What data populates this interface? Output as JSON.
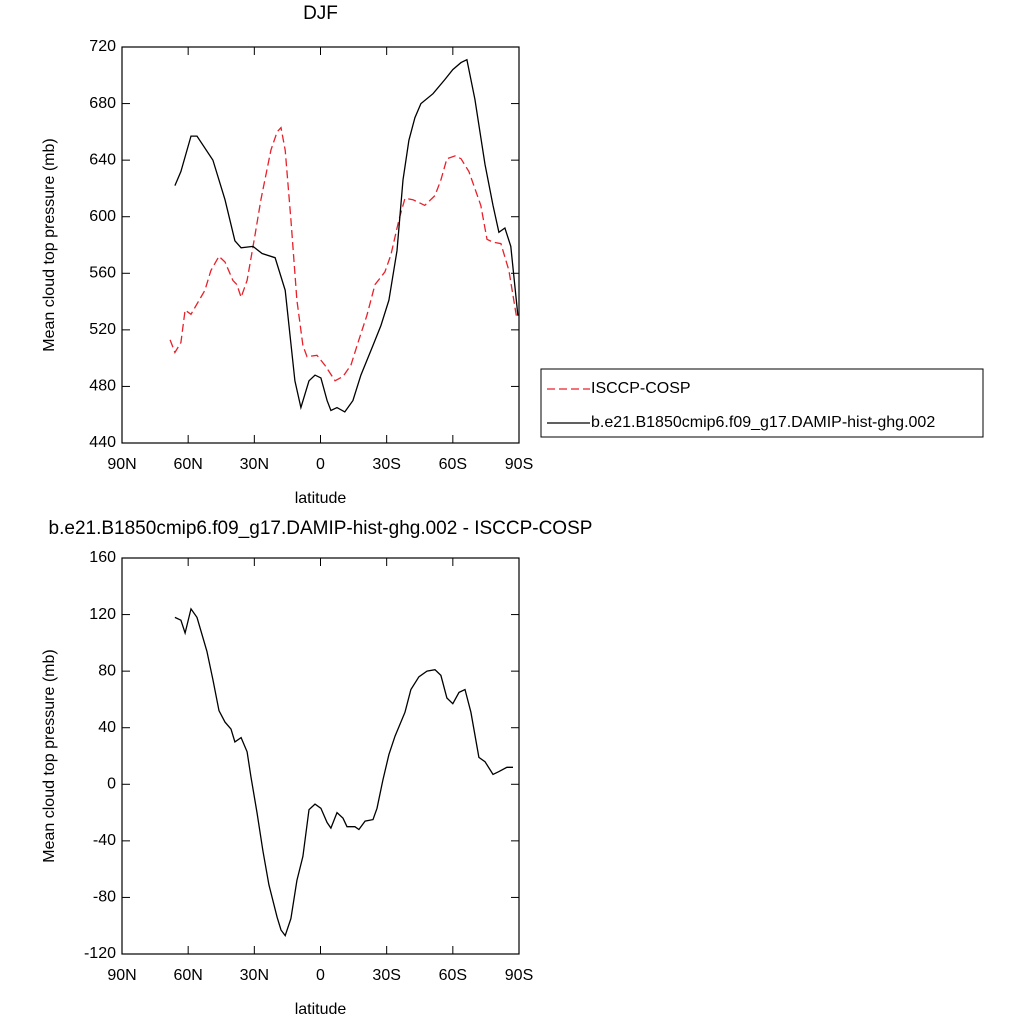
{
  "chart_data": [
    {
      "type": "line",
      "title": "DJF",
      "x_label": "latitude",
      "y_label": "Mean cloud top pressure (mb)",
      "xlim": [
        90,
        -90
      ],
      "xticks": [
        {
          "value": 90,
          "label": "90N"
        },
        {
          "value": 60,
          "label": "60N"
        },
        {
          "value": 30,
          "label": "30N"
        },
        0,
        {
          "value": -30,
          "label": "30S"
        },
        {
          "value": -60,
          "label": "60S"
        },
        {
          "value": -90,
          "label": "90S"
        }
      ],
      "ylim": [
        440,
        720
      ],
      "yticks": [
        440,
        480,
        520,
        560,
        600,
        640,
        680,
        720
      ],
      "legend": "right",
      "series": [
        {
          "name": "ISCCP-COSP",
          "color": "#e8202a",
          "dashed": true,
          "x": [
            68.2,
            66,
            63.3,
            61.4,
            58.7,
            52.4,
            49.7,
            46,
            43.3,
            39.7,
            37.9,
            36,
            33.3,
            29.7,
            27,
            22.5,
            19.7,
            17.9,
            16,
            13.4,
            10.7,
            8,
            6.1,
            1.6,
            -2,
            -6.6,
            -10.2,
            -13.8,
            -17.4,
            -21,
            -24.7,
            -29.2,
            -31.9,
            -35.6,
            -38.3,
            -41.9,
            -47.3,
            -51.9,
            -54.6,
            -57.3,
            -61,
            -63.7,
            -67.3,
            -72.7,
            -75.5,
            -78.2,
            -81.8,
            -85.4,
            -89
          ],
          "values": [
            513,
            504,
            511,
            534,
            531,
            548,
            562,
            572,
            568,
            555,
            552,
            543,
            555,
            587,
            612,
            647,
            660,
            663,
            647,
            598,
            541,
            509,
            501,
            502,
            495,
            484,
            487,
            495,
            513,
            530,
            552,
            561,
            573,
            598,
            613,
            612,
            608,
            615,
            626,
            641,
            643,
            641,
            632,
            608,
            584,
            582,
            581,
            562,
            528
          ]
        },
        {
          "name": "b.e21.B1850cmip6.f09_g17.DAMIP-hist-ghg.002",
          "color": "#000000",
          "dashed": false,
          "x": [
            66,
            63.3,
            58.7,
            56,
            48.8,
            43.3,
            38.8,
            36,
            30.6,
            26.5,
            20.6,
            16,
            11.6,
            8.9,
            5.2,
            2.5,
            -0.2,
            -3,
            -4.7,
            -7.5,
            -11,
            -14.7,
            -18.3,
            -23.8,
            -27.4,
            -31,
            -34.7,
            -37.4,
            -40.1,
            -42.8,
            -45.5,
            -51,
            -56.4,
            -60,
            -63.7,
            -66.4,
            -70,
            -74.6,
            -78.2,
            -80.9,
            -83.6,
            -86.3,
            -89.5
          ],
          "values": [
            622,
            632,
            657,
            657,
            640,
            612,
            583,
            578,
            579,
            574,
            571,
            548,
            484,
            465,
            484,
            488,
            486,
            470,
            463,
            465,
            462,
            470,
            488,
            509,
            523,
            541,
            576,
            626,
            654,
            670,
            680,
            687,
            697,
            704,
            709,
            711,
            683,
            637,
            608,
            589,
            592,
            579,
            530
          ]
        }
      ]
    },
    {
      "type": "line",
      "title": "b.e21.B1850cmip6.f09_g17.DAMIP-hist-ghg.002 - ISCCP-COSP",
      "x_label": "latitude",
      "y_label": "Mean cloud top pressure (mb)",
      "xlim": [
        90,
        -90
      ],
      "xticks": [
        {
          "value": 90,
          "label": "90N"
        },
        {
          "value": 60,
          "label": "60N"
        },
        {
          "value": 30,
          "label": "30N"
        },
        0,
        {
          "value": -30,
          "label": "30S"
        },
        {
          "value": -60,
          "label": "60S"
        },
        {
          "value": -90,
          "label": "90S"
        }
      ],
      "ylim": [
        -120,
        160
      ],
      "yticks": [
        -120,
        -80,
        -40,
        0,
        40,
        80,
        120,
        160
      ],
      "series": [
        {
          "color": "#000000",
          "dashed": false,
          "x": [
            66,
            63.3,
            61.4,
            58.7,
            56,
            51.5,
            48.8,
            46,
            43.3,
            40.6,
            38.8,
            36,
            33.3,
            31.5,
            28.8,
            26.1,
            23.4,
            19.7,
            17.9,
            16,
            13.4,
            10.7,
            8,
            5.2,
            2.5,
            -0.2,
            -3,
            -4.7,
            -7.5,
            -10.2,
            -12,
            -15.6,
            -17.4,
            -20.2,
            -23.8,
            -25.6,
            -28.3,
            -31,
            -33.8,
            -38.3,
            -41,
            -44.6,
            -48.3,
            -51.9,
            -54.6,
            -57.3,
            -60,
            -62.8,
            -65.5,
            -68.2,
            -71.8,
            -74.6,
            -78.2,
            -80.9,
            -84.5,
            -87.3
          ],
          "values": [
            118,
            116,
            107,
            124,
            118,
            94,
            74,
            52,
            44,
            39,
            30,
            33,
            23,
            5,
            -20,
            -47,
            -71,
            -94,
            -103,
            -107,
            -95,
            -68,
            -51,
            -18,
            -14,
            -17,
            -27,
            -31,
            -20,
            -24,
            -30,
            -30,
            -32,
            -26,
            -25,
            -17,
            3,
            21,
            34,
            51,
            67,
            76,
            80,
            81,
            77,
            61,
            57,
            65,
            67,
            51,
            19,
            16,
            7,
            9,
            12,
            12
          ]
        }
      ]
    }
  ]
}
